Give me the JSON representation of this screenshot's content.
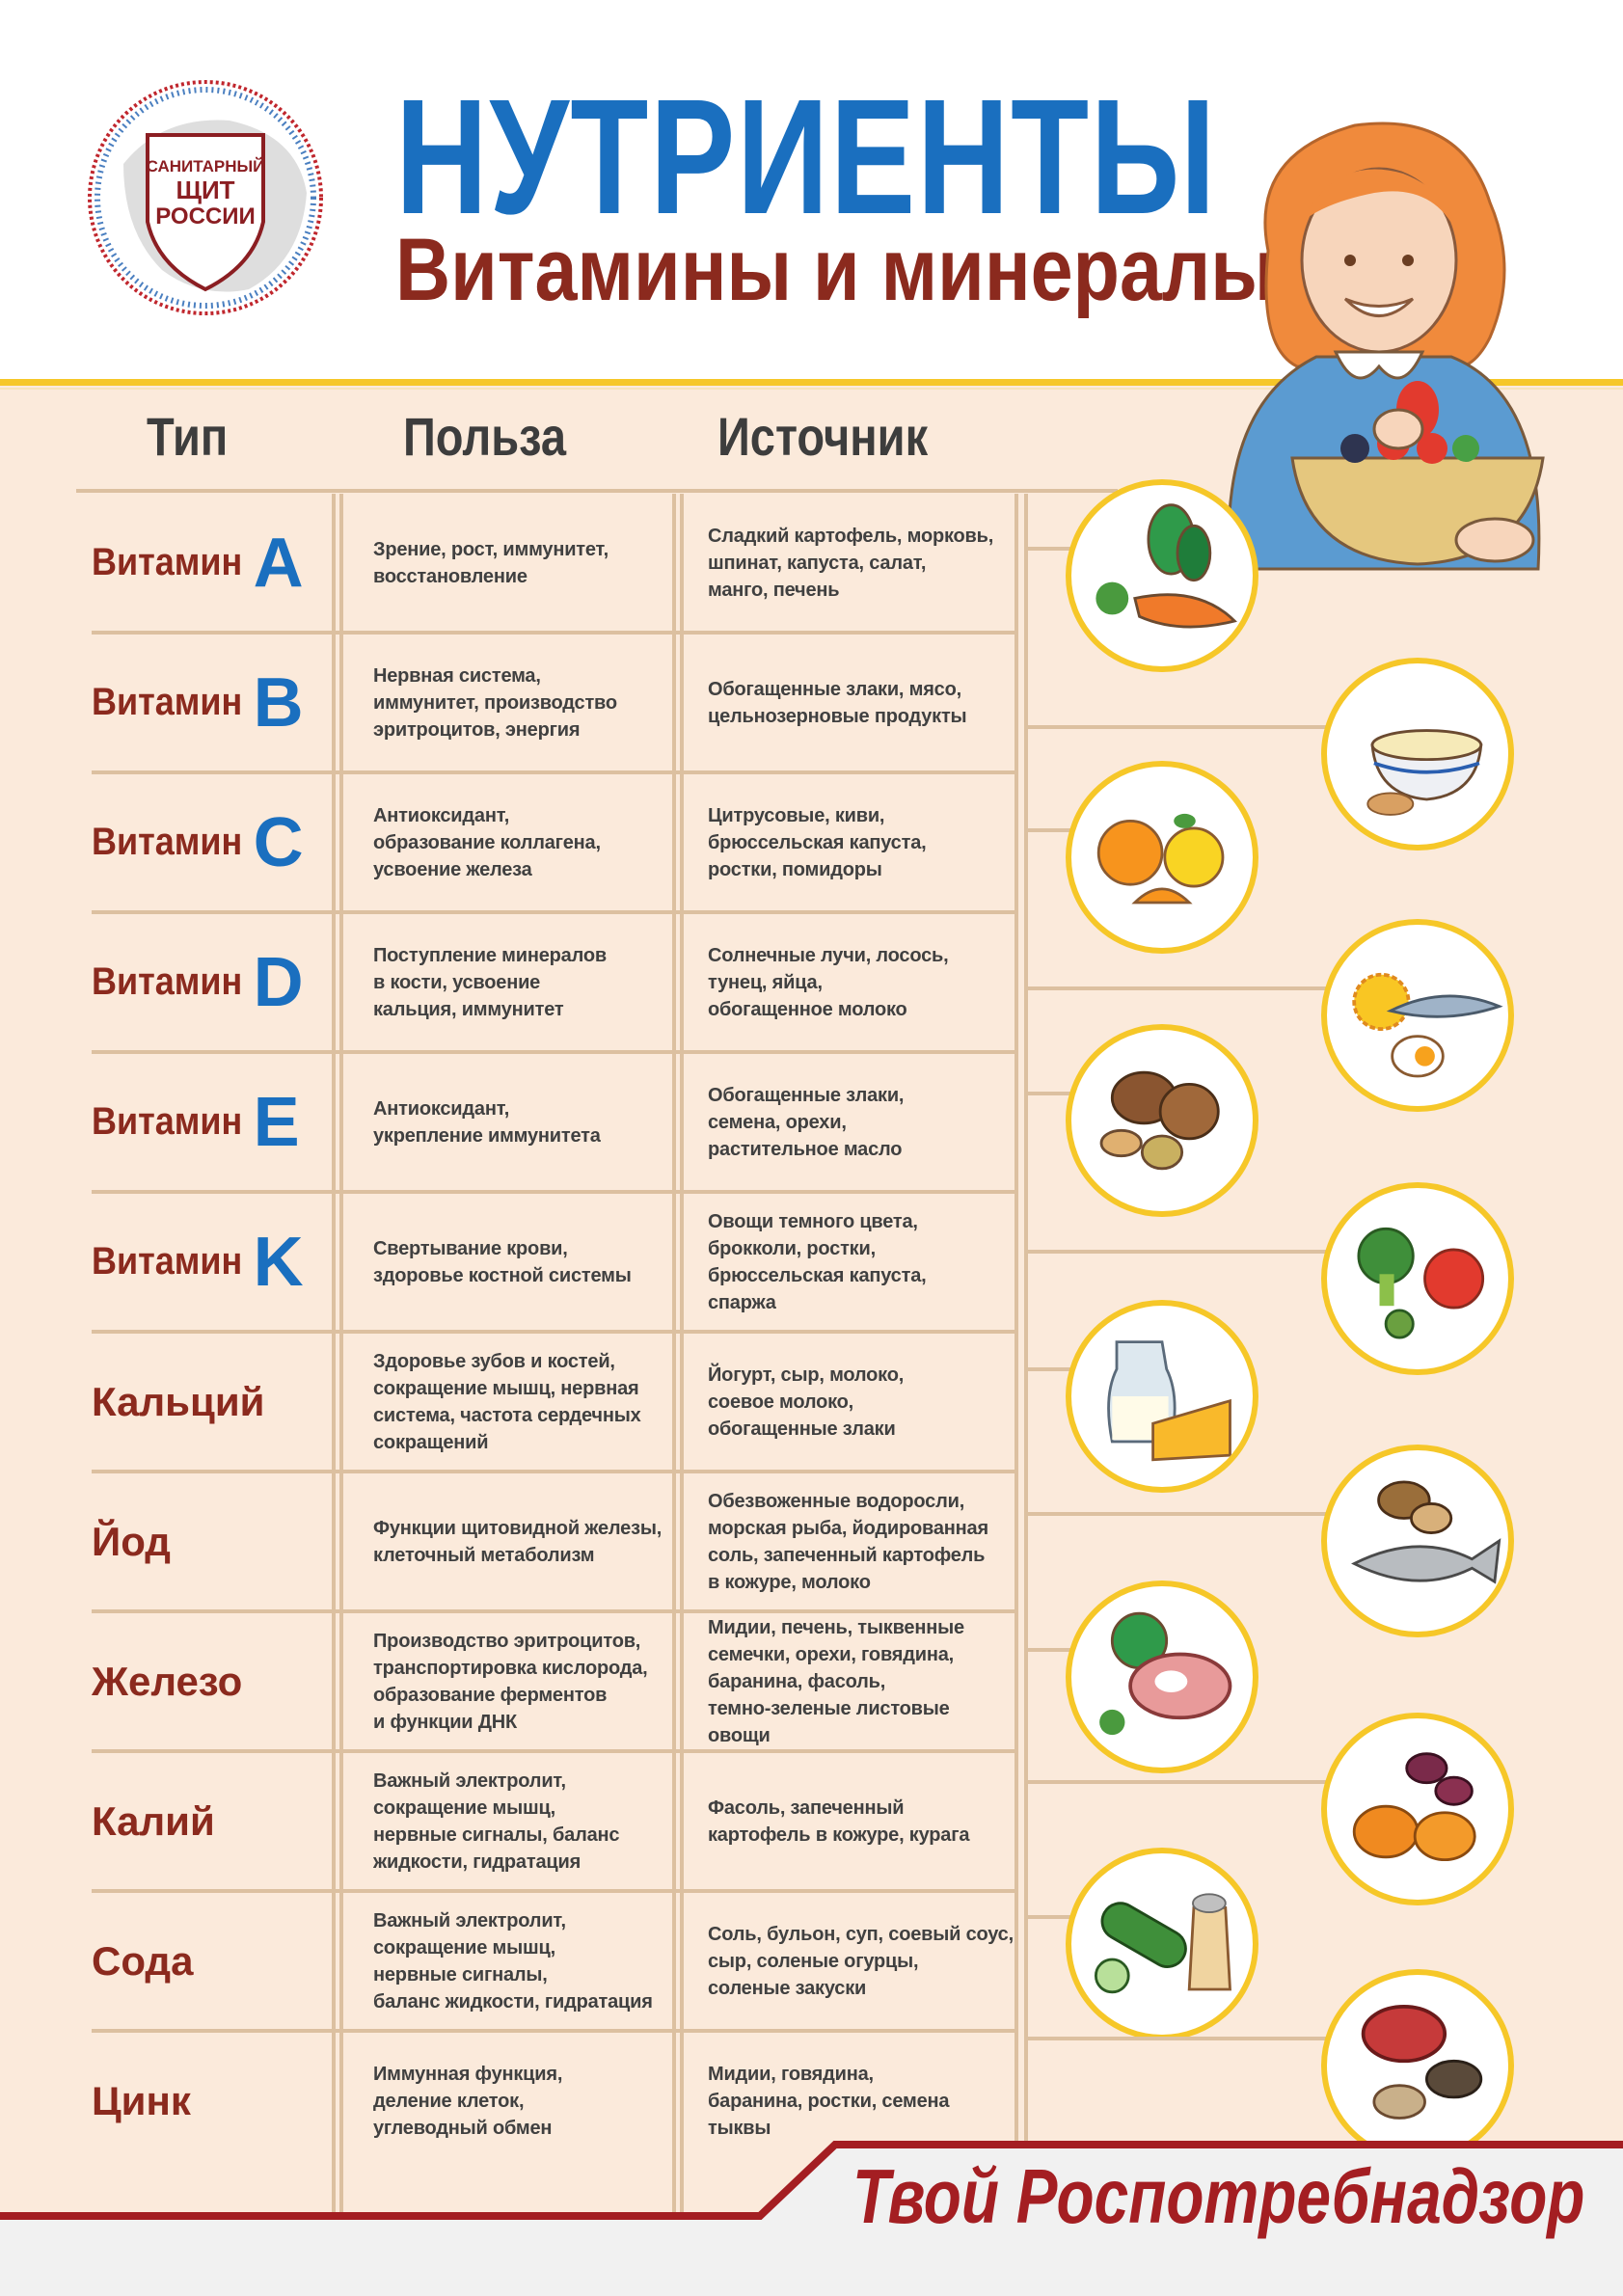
{
  "logo": {
    "line1": "САНИТАРНЫЙ",
    "line2": "ЩИТ",
    "line3": "РОССИИ"
  },
  "header": {
    "title": "НУТРИЕНТЫ",
    "subtitle": "Витамины и минералы"
  },
  "columns": {
    "type": "Тип",
    "benefit": "Польза",
    "source": "Источник"
  },
  "colors": {
    "blue": "#1a6fbf",
    "brown_red": "#8b2a1e",
    "accent_yellow": "#f6c728",
    "table_bg": "#fbeadb",
    "footer_red": "#a41e22"
  },
  "rows": [
    {
      "word": "Витамин",
      "letter": "A",
      "benefit": "Зрение, рост, иммунитет,\nвосстановление",
      "source": "Сладкий картофель, морковь,\nшпинат, капуста, салат,\nманго, печень",
      "icon": "carrot-spinach-icon"
    },
    {
      "word": "Витамин",
      "letter": "B",
      "benefit": "Нервная система,\nиммунитет, производство\nэритроцитов, энергия",
      "source": "Обогащенные злаки, мясо,\nцельнозерновые продукты",
      "icon": "cereal-bowl-icon"
    },
    {
      "word": "Витамин",
      "letter": "C",
      "benefit": "Антиоксидант,\nобразование коллагена,\nусвоение железа",
      "source": "Цитрусовые, киви,\nбрюссельская капуста,\nростки, помидоры",
      "icon": "citrus-icon"
    },
    {
      "word": "Витамин",
      "letter": "D",
      "benefit": "Поступление минералов\nв кости, усвоение\nкальция, иммунитет",
      "source": "Солнечные лучи, лосось,\nтунец, яйца,\nобогащенное молоко",
      "icon": "sun-fish-egg-icon"
    },
    {
      "word": "Витамин",
      "letter": "E",
      "benefit": "Антиоксидант,\nукрепление иммунитета",
      "source": "Обогащенные злаки,\nсемена, орехи,\nрастительное масло",
      "icon": "nuts-icon"
    },
    {
      "word": "Витамин",
      "letter": "K",
      "benefit": "Свертывание крови,\nздоровье костной системы",
      "source": "Овощи темного цвета,\nброкколи, ростки,\nбрюссельская капуста,\nспаржа",
      "icon": "broccoli-tomato-icon"
    },
    {
      "word": "Кальций",
      "letter": "",
      "benefit": "Здоровье зубов и костей,\nсокращение мышц, нервная\nсистема, частота сердечных\nсокращений",
      "source": "Йогурт, сыр, молоко,\nсоевое молоко,\nобогащенные злаки",
      "icon": "milk-cheese-icon"
    },
    {
      "word": "Йод",
      "letter": "",
      "benefit": "Функции щитовидной железы,\nклеточный метаболизм",
      "source": "Обезвоженные водоросли,\nморская рыба, йодированная\nсоль, запеченный картофель\nв кожуре, молоко",
      "icon": "fish-potato-icon"
    },
    {
      "word": "Железо",
      "letter": "",
      "benefit": "Производство эритроцитов,\nтранспортировка кислорода,\nобразование ферментов\nи функции ДНК",
      "source": "Мидии, печень, тыквенные\nсемечки, орехи, говядина,\nбаранина, фасоль,\nтемно-зеленые листовые овощи",
      "icon": "meat-greens-icon"
    },
    {
      "word": "Калий",
      "letter": "",
      "benefit": "Важный электролит,\nсокращение мышц,\nнервные сигналы, баланс\nжидкости, гидратация",
      "source": "Фасоль, запеченный\nкартофель в кожуре, курага",
      "icon": "beans-apricot-icon"
    },
    {
      "word": "Сода",
      "letter": "",
      "benefit": "Важный электролит,\nсокращение мышц,\nнервные сигналы,\nбаланс жидкости, гидратация",
      "source": "Соль, бульон, суп, соевый соус,\nсыр, соленые огурцы,\nсоленые закуски",
      "icon": "cucumber-salt-icon"
    },
    {
      "word": "Цинк",
      "letter": "",
      "benefit": "Иммунная функция,\nделение клеток,\nуглеводный обмен",
      "source": "Мидии, говядина,\nбаранина, ростки, семена\nтыквы",
      "icon": "meat-mussels-icon"
    }
  ],
  "footer": {
    "text": "Твой Роспотребнадзор"
  }
}
